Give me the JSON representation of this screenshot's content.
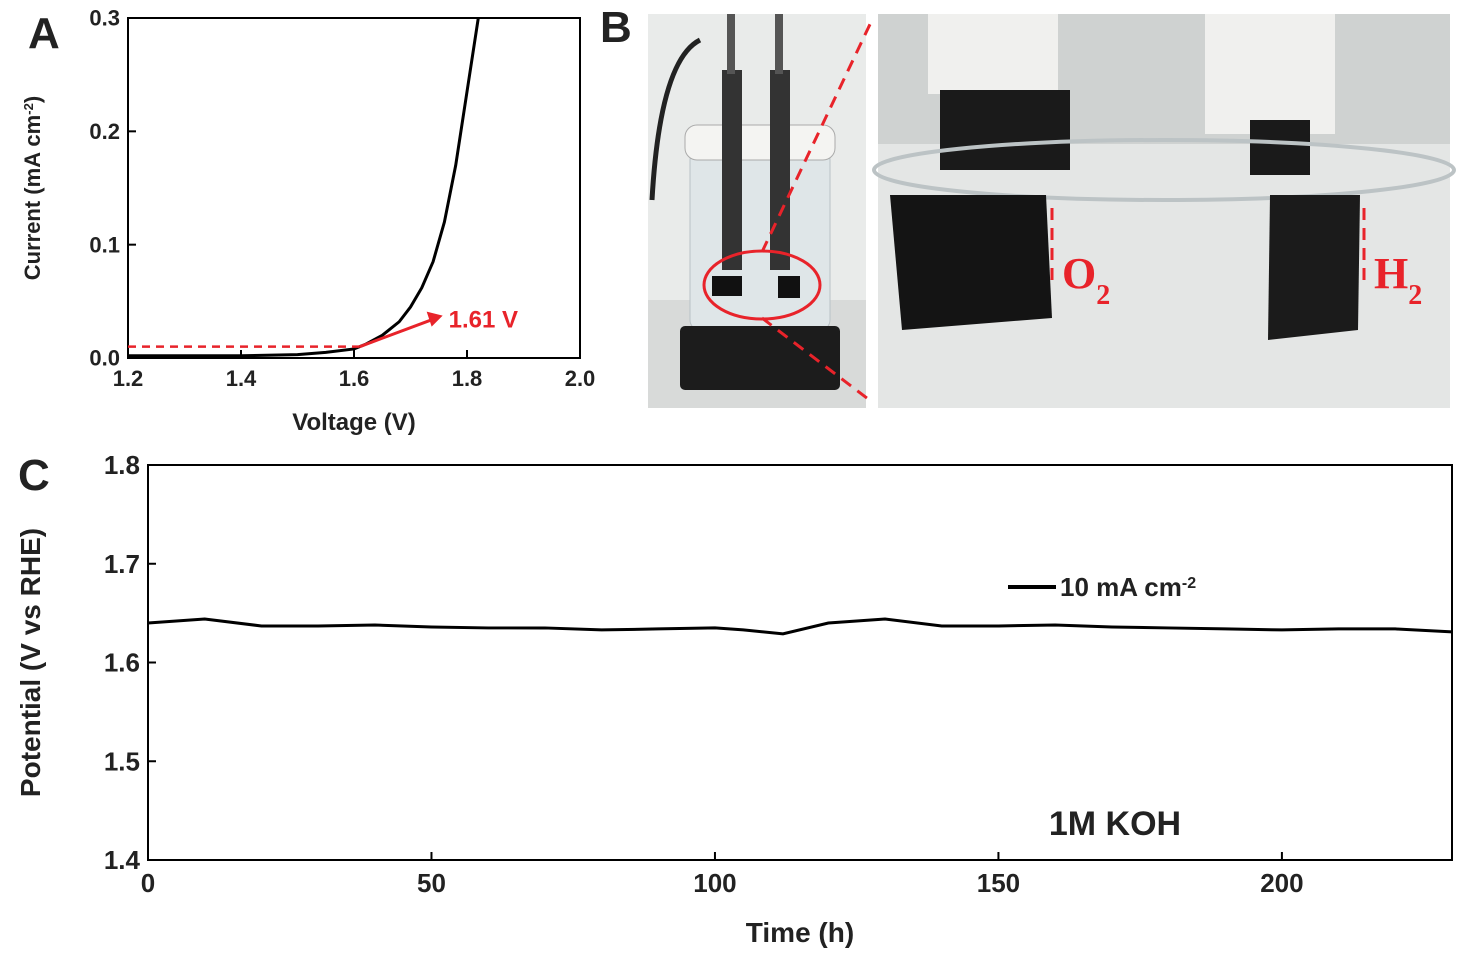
{
  "chart_data": [
    {
      "type": "line",
      "panel": "A",
      "x_label": "Voltage (V)",
      "y_label": [
        "Current (mA cm",
        "-2",
        ")"
      ],
      "xlim": [
        1.2,
        2.0
      ],
      "ylim": [
        0,
        0.3
      ],
      "xticks": [
        1.2,
        1.4,
        1.6,
        1.8,
        {
          "value": 2.0,
          "label": "2.0"
        }
      ],
      "yticks": [
        {
          "value": 0,
          "label": "0.0"
        },
        0.1,
        0.2,
        0.3
      ],
      "series": [
        {
          "name": null,
          "color": "#000000",
          "x": [
            1.2,
            1.3,
            1.4,
            1.5,
            1.55,
            1.6,
            1.62,
            1.65,
            1.68,
            1.7,
            1.72,
            1.74,
            1.76,
            1.78,
            1.8,
            1.82
          ],
          "values": [
            0.002,
            0.002,
            0.002,
            0.003,
            0.005,
            0.008,
            0.012,
            0.02,
            0.032,
            0.045,
            0.062,
            0.085,
            0.12,
            0.17,
            0.235,
            0.3
          ]
        }
      ],
      "reference": {
        "x": 1.61,
        "y": 0.01,
        "label": "1.61 V",
        "color": "#e8232a"
      }
    },
    {
      "type": "photo",
      "panel": "B",
      "labels": [
        [
          "O",
          "2"
        ],
        [
          "H",
          "2"
        ]
      ],
      "color": "#e8232a"
    },
    {
      "type": "line",
      "panel": "C",
      "x_label": "Time (h)",
      "y_label": "Potential (V vs RHE)",
      "xlim": [
        0,
        230
      ],
      "ylim": [
        1.4,
        1.8
      ],
      "xticks": [
        0,
        50,
        100,
        150,
        200
      ],
      "yticks": [
        1.4,
        1.5,
        1.6,
        1.7,
        1.8
      ],
      "series": [
        {
          "name": "10 mA cm",
          "name_sup": "-2",
          "color": "#000000",
          "x": [
            0,
            10,
            20,
            30,
            40,
            50,
            60,
            70,
            80,
            90,
            100,
            105,
            112,
            120,
            130,
            140,
            150,
            160,
            170,
            180,
            190,
            200,
            210,
            220,
            230
          ],
          "values": [
            1.64,
            1.644,
            1.637,
            1.637,
            1.638,
            1.636,
            1.635,
            1.635,
            1.633,
            1.634,
            1.635,
            1.633,
            1.629,
            1.64,
            1.644,
            1.637,
            1.637,
            1.638,
            1.636,
            1.635,
            1.634,
            1.633,
            1.634,
            1.634,
            1.631
          ]
        }
      ],
      "annotation": "1M KOH"
    }
  ]
}
